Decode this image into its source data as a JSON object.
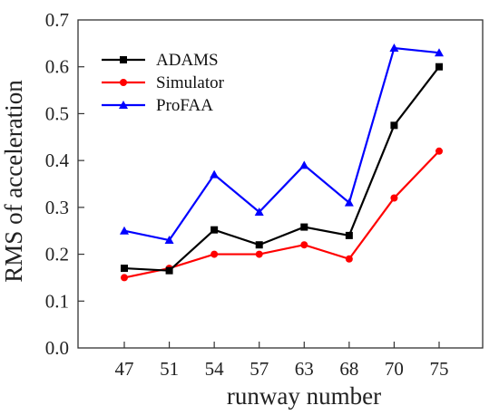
{
  "chart_data": {
    "type": "line",
    "title": "",
    "xlabel": "runway number",
    "ylabel": "RMS of acceleration",
    "categories": [
      "47",
      "51",
      "54",
      "57",
      "63",
      "68",
      "70",
      "75"
    ],
    "ylim": [
      0.0,
      0.7
    ],
    "yticks": [
      "0.0",
      "0.1",
      "0.2",
      "0.3",
      "0.4",
      "0.5",
      "0.6",
      "0.7"
    ],
    "grid": false,
    "legend_position": "top-left",
    "series": [
      {
        "name": "ADAMS",
        "color": "#000000",
        "marker": "square",
        "values": [
          0.17,
          0.165,
          0.252,
          0.22,
          0.258,
          0.24,
          0.475,
          0.6
        ]
      },
      {
        "name": "Simulator",
        "color": "#ff0000",
        "marker": "circle",
        "values": [
          0.15,
          0.17,
          0.2,
          0.2,
          0.22,
          0.19,
          0.32,
          0.42
        ]
      },
      {
        "name": "ProFAA",
        "color": "#0000ff",
        "marker": "triangle",
        "values": [
          0.25,
          0.23,
          0.37,
          0.29,
          0.39,
          0.31,
          0.64,
          0.63
        ]
      }
    ]
  }
}
